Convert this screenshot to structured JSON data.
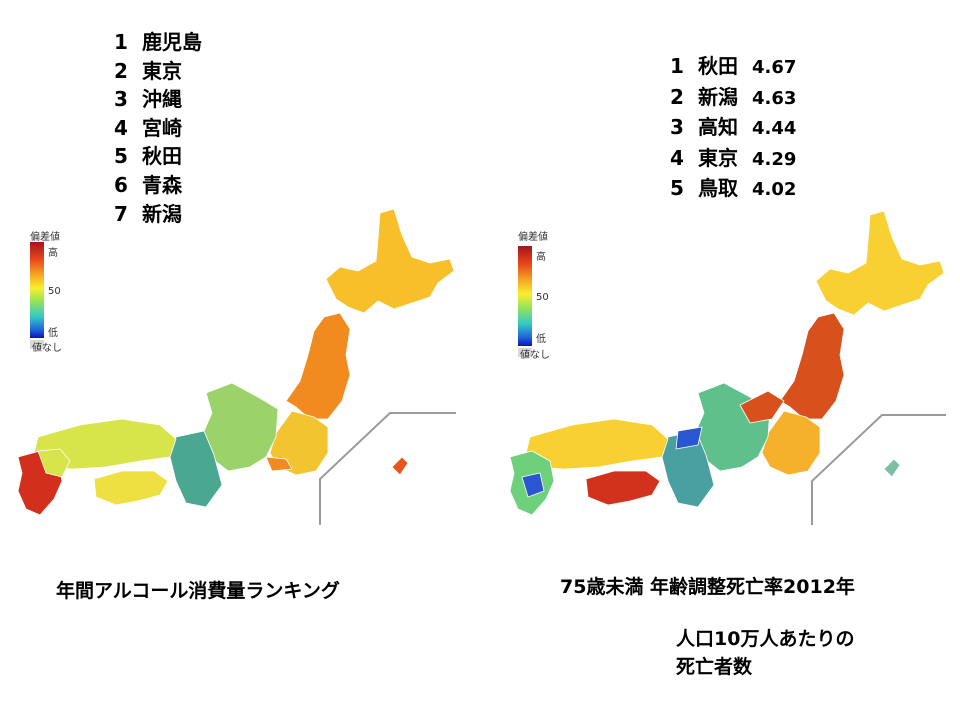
{
  "left_panel": {
    "ranking": [
      {
        "rank": "1",
        "pref": "鹿児島"
      },
      {
        "rank": "2",
        "pref": "東京"
      },
      {
        "rank": "3",
        "pref": "沖縄"
      },
      {
        "rank": "4",
        "pref": "宮崎"
      },
      {
        "rank": "5",
        "pref": "秋田"
      },
      {
        "rank": "6",
        "pref": "青森"
      },
      {
        "rank": "7",
        "pref": "新潟"
      }
    ],
    "legend": {
      "title": "偏差値",
      "high": "高",
      "mid": "50",
      "low": "低",
      "none": "値なし"
    },
    "caption": "年間アルコール消費量ランキング"
  },
  "right_panel": {
    "ranking": [
      {
        "rank": "1",
        "pref": "秋田",
        "value": "4.67"
      },
      {
        "rank": "2",
        "pref": "新潟",
        "value": "4.63"
      },
      {
        "rank": "3",
        "pref": "高知",
        "value": "4.44"
      },
      {
        "rank": "4",
        "pref": "東京",
        "value": "4.29"
      },
      {
        "rank": "5",
        "pref": "鳥取",
        "value": "4.02"
      }
    ],
    "legend": {
      "title": "偏差値",
      "high": "高",
      "mid": "50",
      "low": "低",
      "none": "値なし"
    },
    "caption": "75歳未満  年齢調整死亡率2012年",
    "subcaption_line1": "人口10万人あたりの",
    "subcaption_line2": "死亡者数"
  },
  "colors": {
    "hokkaido_left": "#f7c02a",
    "tohoku_left": "#f28b1f",
    "kanto_left": "#f2c430",
    "chubu_left": "#9bd36a",
    "kinki_left": "#4aa891",
    "chugoku_left": "#d7e44a",
    "shikoku_left": "#eee040",
    "kyushu_left": "#d2301c",
    "okinawa_left": "#e8561d",
    "hokkaido_right": "#f9d032",
    "tohoku_right": "#d8511c",
    "kanto_right": "#f6b12c",
    "chubu_right": "#5fc08c",
    "kinki_right": "#4aa0a0",
    "chugoku_right": "#2a56d2",
    "shikoku_right": "#d2321c",
    "kyushu_right": "#6ed07a",
    "okinawa_right": "#7bbfa0"
  }
}
